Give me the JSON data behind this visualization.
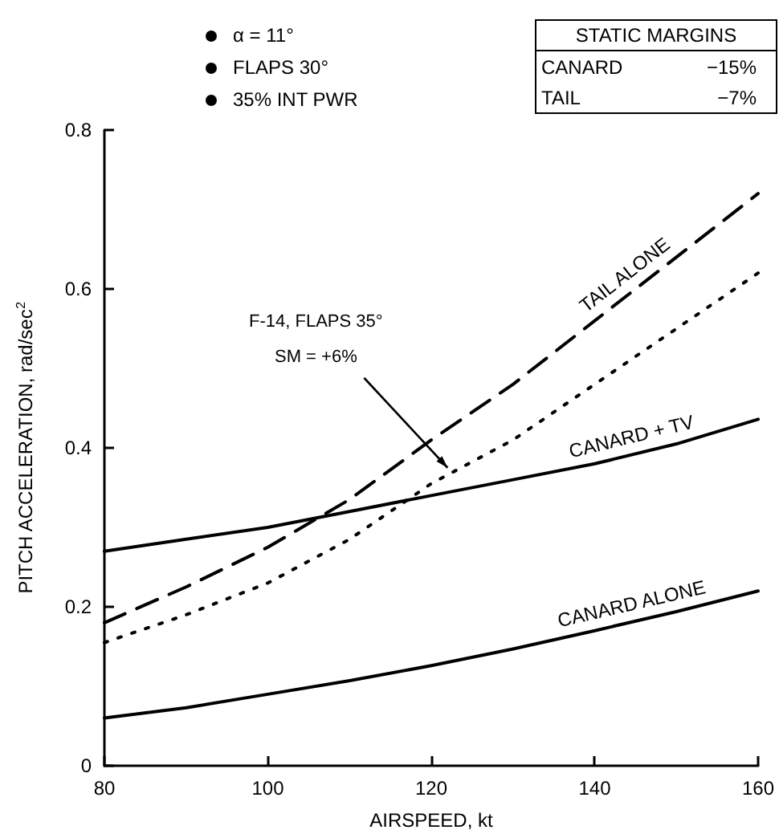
{
  "chart_data": {
    "type": "line",
    "xlabel": "AIRSPEED, kt",
    "ylabel": "PITCH ACCELERATION, rad/sec$^{2}$",
    "x": [
      80,
      90,
      100,
      110,
      120,
      130,
      140,
      150,
      160
    ],
    "series": [
      {
        "name": "TAIL ALONE",
        "color": "#000000",
        "line_style": "dashed",
        "values": [
          0.18,
          0.225,
          0.275,
          0.335,
          0.41,
          0.48,
          0.56,
          0.64,
          0.72
        ]
      },
      {
        "color": "#000000",
        "line_style": "dotted",
        "values": [
          0.155,
          0.19,
          0.23,
          0.285,
          0.355,
          0.41,
          0.48,
          0.55,
          0.62
        ]
      },
      {
        "name": "CANARD + TV",
        "color": "#000000",
        "line_style": "solid",
        "values": [
          0.27,
          0.285,
          0.3,
          0.32,
          0.34,
          0.36,
          0.38,
          0.405,
          0.436
        ]
      },
      {
        "name": "CANARD ALONE",
        "color": "#000000",
        "line_style": "solid",
        "values": [
          0.06,
          0.073,
          0.09,
          0.107,
          0.126,
          0.147,
          0.17,
          0.194,
          0.22
        ]
      }
    ],
    "xlim": [
      80,
      160
    ],
    "xticks": [
      80,
      100,
      120,
      140,
      160
    ],
    "ylim": [
      0,
      0.8
    ],
    "yticks": [
      0,
      0.2,
      0.4,
      0.6,
      0.8
    ],
    "grid": false,
    "legend": false,
    "marker": "none",
    "annotations": [
      "α = 11°",
      "FLAPS 30°",
      "35% INT PWR",
      "STATIC MARGINS",
      "CANARD",
      "−15%",
      "TAIL",
      "−7%",
      {
        "text": "F-14, FLAPS 35°\nSM = +6%",
        "x": 122,
        "y": 0.375
      }
    ]
  }
}
